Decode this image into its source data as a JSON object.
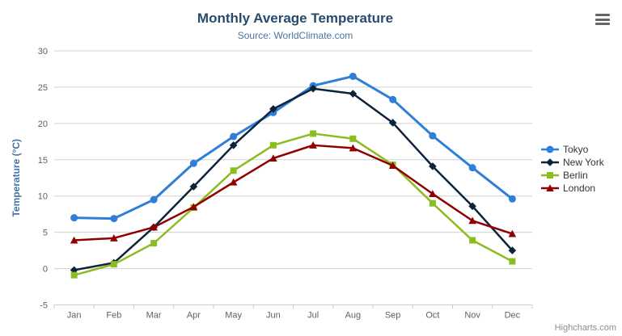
{
  "header": {
    "title": "Monthly Average Temperature",
    "subtitle": "Source: WorldClimate.com"
  },
  "credits_label": "Highcharts.com",
  "export_menu_icon": "hamburger-icon",
  "colors": {
    "title": "#274b6d",
    "subtitle": "#4d759e",
    "axis_title": "#4572a7",
    "axis_labels": "#606060",
    "gridline": "#d0d0d0",
    "axis_line": "#c0d0e0",
    "legend_text": "#333333",
    "background": "#ffffff"
  },
  "chart_data": {
    "type": "line",
    "title": "Monthly Average Temperature",
    "subtitle": "Source: WorldClimate.com",
    "xlabel": "",
    "ylabel": "Temperature (°C)",
    "categories": [
      "Jan",
      "Feb",
      "Mar",
      "Apr",
      "May",
      "Jun",
      "Jul",
      "Aug",
      "Sep",
      "Oct",
      "Nov",
      "Dec"
    ],
    "series": [
      {
        "name": "Tokyo",
        "color": "#2f7ed8",
        "marker": "circle",
        "values": [
          7.0,
          6.9,
          9.5,
          14.5,
          18.2,
          21.5,
          25.2,
          26.5,
          23.3,
          18.3,
          13.9,
          9.6
        ]
      },
      {
        "name": "New York",
        "color": "#0d233a",
        "marker": "diamond",
        "values": [
          -0.2,
          0.8,
          5.7,
          11.3,
          17.0,
          22.0,
          24.8,
          24.1,
          20.1,
          14.1,
          8.6,
          2.5
        ]
      },
      {
        "name": "Berlin",
        "color": "#8bbc21",
        "marker": "square",
        "values": [
          -0.9,
          0.6,
          3.5,
          8.4,
          13.5,
          17.0,
          18.6,
          17.9,
          14.3,
          9.0,
          3.9,
          1.0
        ]
      },
      {
        "name": "London",
        "color": "#910000",
        "marker": "triangle",
        "values": [
          3.9,
          4.2,
          5.7,
          8.5,
          11.9,
          15.2,
          17.0,
          16.6,
          14.2,
          10.3,
          6.6,
          4.8
        ]
      }
    ],
    "ylim": [
      -5,
      30
    ],
    "ytick_interval": 5,
    "grid": true,
    "legend_position": "right"
  }
}
